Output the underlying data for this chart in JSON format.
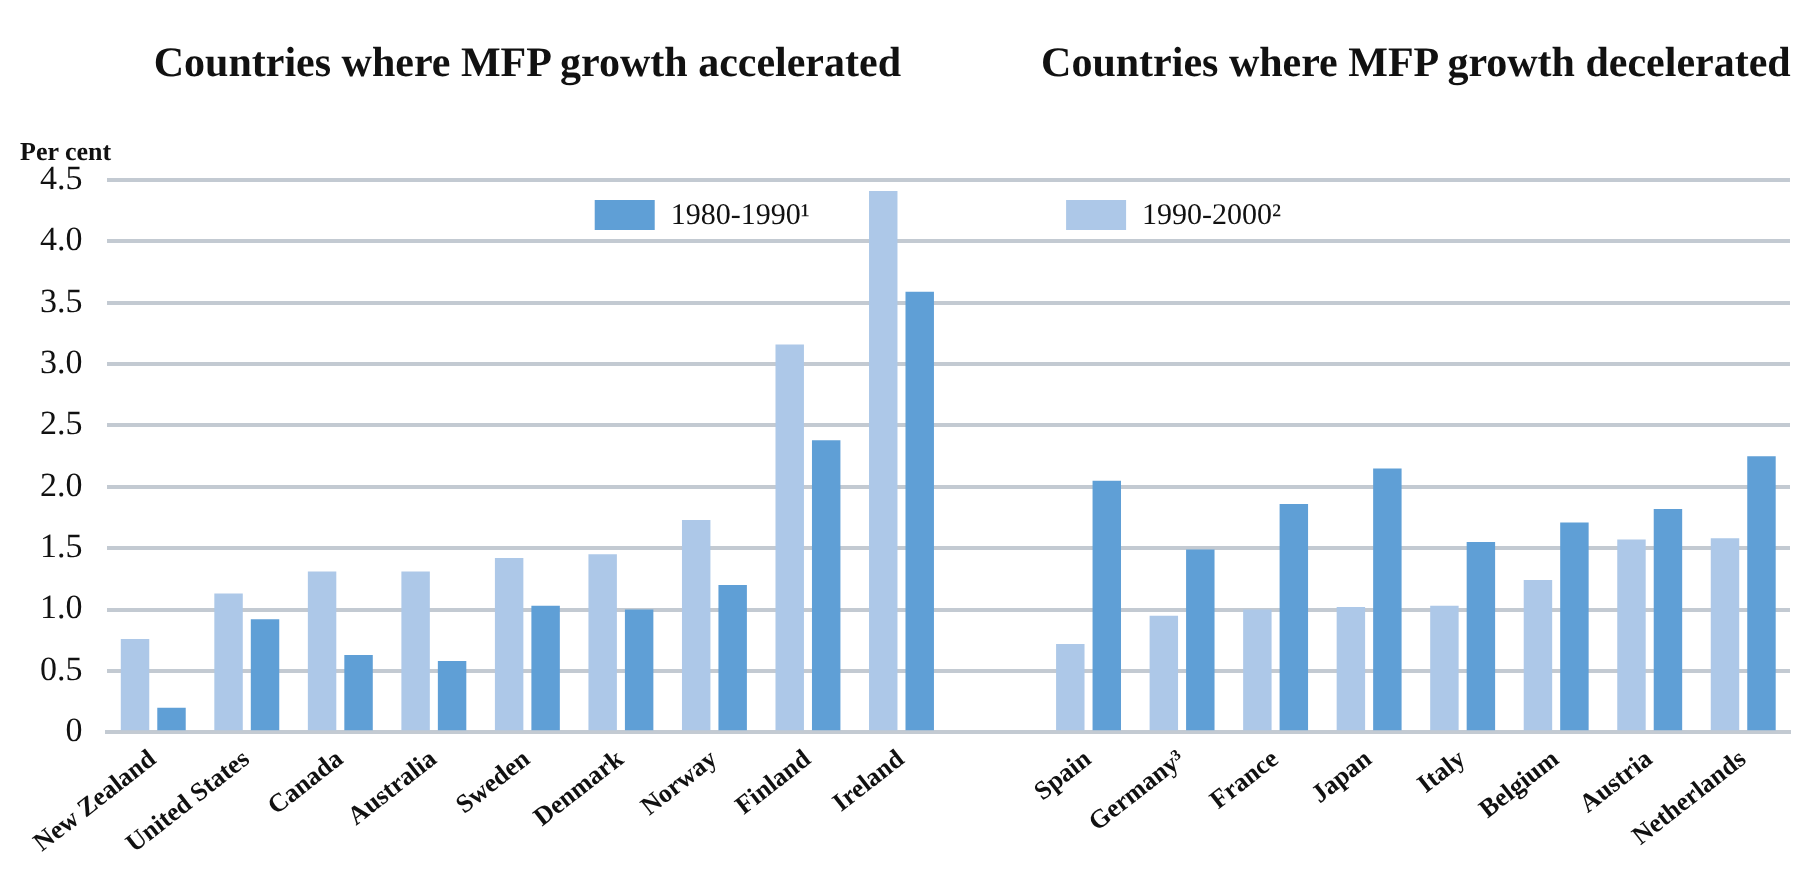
{
  "chart_data": {
    "type": "bar",
    "ylabel": "Per cent",
    "annotations": [
      "Countries where MFP growth accelerated",
      "Countries where MFP growth decelerated"
    ],
    "categories": [
      "New Zealand",
      "United States",
      "Canada",
      "Australia",
      "Sweden",
      "Denmark",
      "Norway",
      "Finland",
      "Ireland",
      null,
      "Spain",
      "Germany³",
      "France",
      "Japan",
      "Italy",
      "Belgium",
      "Austria",
      "Netherlands"
    ],
    "series": [
      {
        "name": "1980-1990¹",
        "color": "#5f9fd6",
        "values": [
          0.2,
          0.92,
          0.63,
          0.58,
          1.03,
          1.0,
          1.2,
          2.38,
          3.59,
          null,
          2.05,
          1.49,
          1.86,
          2.15,
          1.55,
          1.71,
          1.82,
          2.25
        ]
      },
      {
        "name": "1990-2000²",
        "color": "#adc8e8",
        "values": [
          0.76,
          1.13,
          1.31,
          1.31,
          1.42,
          1.45,
          1.73,
          3.16,
          4.41,
          null,
          0.72,
          0.95,
          1.0,
          1.02,
          1.03,
          1.24,
          1.57,
          1.58
        ]
      }
    ],
    "ylim": [
      0,
      4.5
    ],
    "yticks": [
      0,
      0.5,
      {
        "value": 1,
        "label": "1.0"
      },
      1.5,
      {
        "value": 2,
        "label": "2.0"
      },
      2.5,
      {
        "value": 3,
        "label": "3.0"
      },
      3.5,
      {
        "value": 4,
        "label": "4.0"
      },
      4.5
    ],
    "grid": "y",
    "legend": "top"
  }
}
